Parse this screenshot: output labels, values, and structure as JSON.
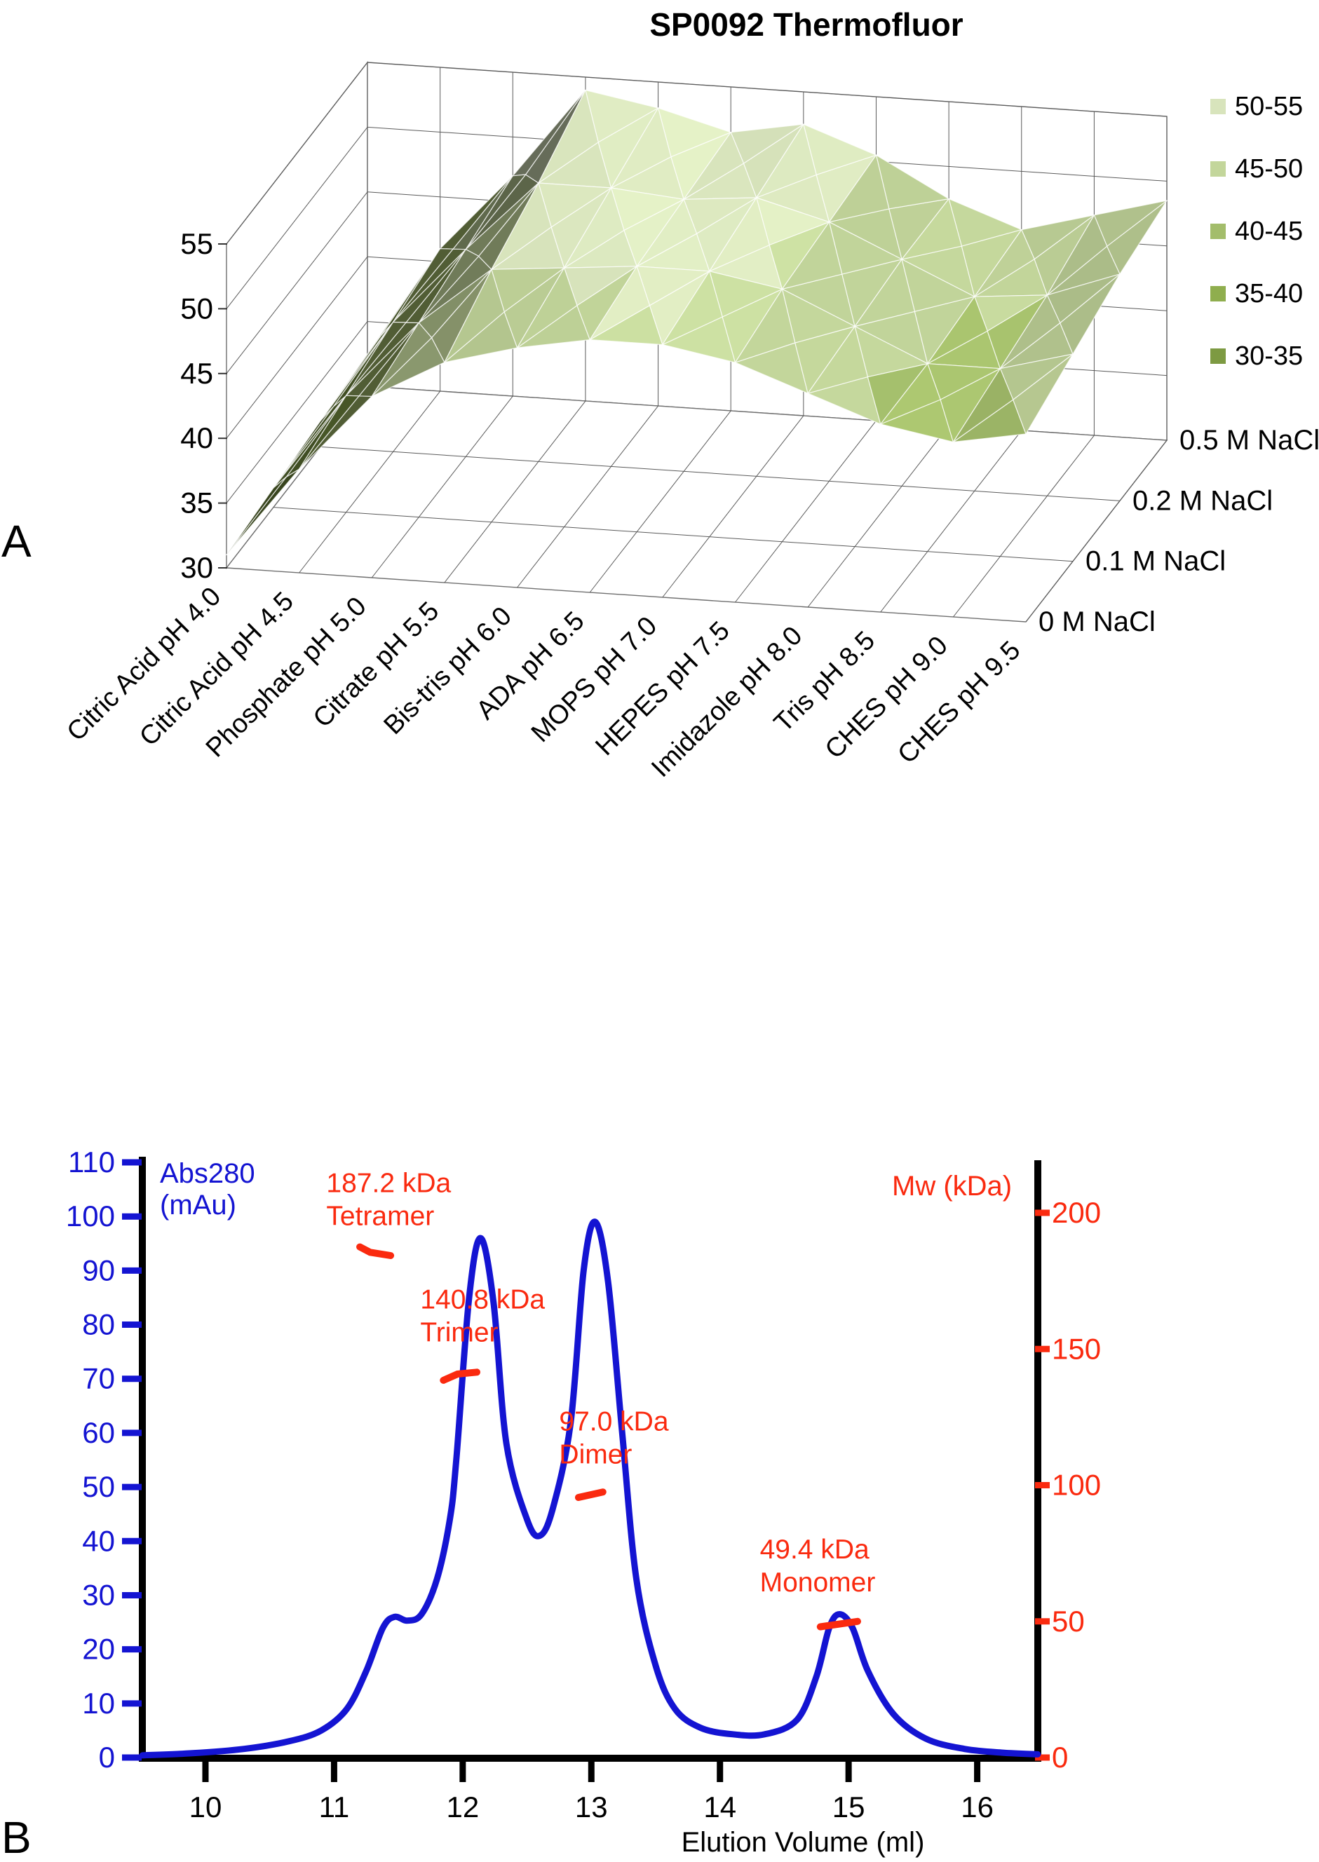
{
  "panel_a": {
    "label": "A",
    "title": "SP0092 Thermofluor"
  },
  "panel_b": {
    "label": "B",
    "left_axis_title_line1": "Abs280",
    "left_axis_title_line2": "(mAu)",
    "right_axis_title": "Mw (kDa)",
    "x_axis_title": "Elution Volume (ml)",
    "colors": {
      "abs": "#1414d2",
      "mw": "#fa2a0f",
      "axis": "#000000"
    }
  },
  "chart_data": [
    {
      "type": "heatmap",
      "subtype": "3d-surface",
      "title": "SP0092 Thermofluor",
      "categories": [
        "Citric Acid pH 4.0",
        "Citric Acid pH 4.5",
        "Phosphate pH 5.0",
        "Citrate pH 5.5",
        "Bis-tris pH 6.0",
        "ADA pH 6.5",
        "MOPS pH 7.0",
        "HEPES pH 7.5",
        "Imidazole pH 8.0",
        "Tris pH 8.5",
        "CHES pH 9.0",
        "CHES pH 9.5"
      ],
      "z_ticks": [
        30,
        35,
        40,
        45,
        50,
        55
      ],
      "zlim": [
        30,
        55
      ],
      "legend_position": "right",
      "series": [
        {
          "name": "0 M NaCl",
          "values": [
            31,
            38,
            44,
            47,
            48.5,
            49.5,
            49.5,
            48.5,
            46.5,
            44.5,
            43.5,
            44.5
          ]
        },
        {
          "name": "0.1 M NaCl",
          "values": [
            31.5,
            39,
            45,
            49.5,
            50,
            50.5,
            50.5,
            49.5,
            47,
            44.5,
            44.5,
            46
          ]
        },
        {
          "name": "0.2 M NaCl",
          "values": [
            32,
            40,
            46,
            51.5,
            51.5,
            51,
            51.5,
            50,
            47.5,
            45,
            45.5,
            47.5
          ]
        },
        {
          "name": "0.5 M NaCl",
          "values": [
            32.5,
            41,
            47,
            54,
            53,
            51.5,
            52.5,
            50.5,
            47.5,
            45.5,
            47,
            48.5
          ]
        }
      ],
      "bands": [
        {
          "label": "50-55",
          "color": "#d8e4bc"
        },
        {
          "label": "45-50",
          "color": "#c3d69b"
        },
        {
          "label": "40-45",
          "color": "#a3bd6b"
        },
        {
          "label": "35-40",
          "color": "#8fae4e"
        },
        {
          "label": "30-35",
          "color": "#7d9a42"
        }
      ]
    },
    {
      "type": "line",
      "xlabel": "Elution Volume (ml)",
      "x_ticks": [
        10,
        11,
        12,
        13,
        14,
        15,
        16
      ],
      "xlim": [
        9.51,
        16.47
      ],
      "y_left": {
        "label": "Abs280 (mAu)",
        "ticks": [
          0,
          10,
          20,
          30,
          40,
          50,
          60,
          70,
          80,
          90,
          100,
          110
        ],
        "lim": [
          0,
          110
        ]
      },
      "y_right": {
        "label": "Mw (kDa)",
        "ticks": [
          0,
          50,
          100,
          150,
          200
        ],
        "lim": [
          0,
          219
        ]
      },
      "series": [
        {
          "name": "Abs280",
          "color": "#1414d2",
          "points": [
            [
              9.51,
              0.4
            ],
            [
              9.9,
              0.8
            ],
            [
              10.3,
              1.6
            ],
            [
              10.65,
              3
            ],
            [
              10.9,
              5
            ],
            [
              11.1,
              9
            ],
            [
              11.25,
              16
            ],
            [
              11.38,
              24
            ],
            [
              11.47,
              26
            ],
            [
              11.57,
              25.3
            ],
            [
              11.68,
              26.5
            ],
            [
              11.8,
              33
            ],
            [
              11.9,
              44
            ],
            [
              11.95,
              55
            ],
            [
              12.05,
              85
            ],
            [
              12.14,
              96
            ],
            [
              12.24,
              84
            ],
            [
              12.34,
              58
            ],
            [
              12.5,
              44
            ],
            [
              12.6,
              41
            ],
            [
              12.7,
              46
            ],
            [
              12.84,
              62
            ],
            [
              12.94,
              90
            ],
            [
              13.03,
              99
            ],
            [
              13.13,
              88
            ],
            [
              13.24,
              60
            ],
            [
              13.35,
              33
            ],
            [
              13.5,
              17
            ],
            [
              13.65,
              9
            ],
            [
              13.85,
              5.5
            ],
            [
              14.1,
              4.3
            ],
            [
              14.35,
              4.3
            ],
            [
              14.6,
              7
            ],
            [
              14.75,
              15
            ],
            [
              14.85,
              24
            ],
            [
              14.93,
              26.5
            ],
            [
              15.03,
              24
            ],
            [
              15.15,
              16
            ],
            [
              15.35,
              8
            ],
            [
              15.6,
              3.5
            ],
            [
              15.9,
              1.6
            ],
            [
              16.2,
              0.9
            ],
            [
              16.47,
              0.6
            ]
          ]
        }
      ],
      "annotations": [
        {
          "mw_label": "187.2 kDa",
          "oligomer": "Tetramer",
          "anchor": [
            10.94,
            108.0
          ],
          "dash": [
            [
              11.2,
              187.5
            ],
            [
              11.28,
              185.5
            ],
            [
              11.44,
              184.3
            ]
          ]
        },
        {
          "mw_label": "140.8 kDa",
          "oligomer": "Trimer",
          "anchor": [
            11.67,
            86.5
          ],
          "dash": [
            [
              11.85,
              138.5
            ],
            [
              11.96,
              140.8
            ],
            [
              12.11,
              141.5
            ]
          ]
        },
        {
          "mw_label": "97.0 kDa",
          "oligomer": "Dimer",
          "anchor": [
            12.75,
            64.0
          ],
          "dash": [
            [
              12.9,
              95.5
            ],
            [
              13.09,
              97.5
            ]
          ]
        },
        {
          "mw_label": "49.4 kDa",
          "oligomer": "Monomer",
          "anchor": [
            14.31,
            40.3
          ],
          "dash": [
            [
              14.78,
              48
            ],
            [
              15.07,
              50
            ]
          ]
        }
      ]
    }
  ]
}
